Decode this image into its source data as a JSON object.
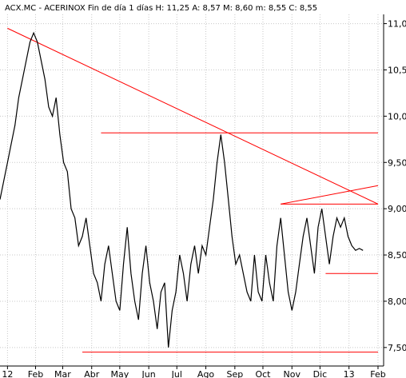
{
  "chart_data": {
    "type": "line",
    "title": "ACX.MC - ACERINOX  Fin de día 1 días  H: 11,25  A: 8,57  M: 8,60  m: 8,55  C: 8,55",
    "ylim": [
      7.3,
      11.1
    ],
    "y_ticks": [
      "7,50",
      "8,00",
      "8,50",
      "9,00",
      "9,50",
      "10,0",
      "10,5",
      "11,0"
    ],
    "y_tick_values": [
      7.5,
      8.0,
      8.5,
      9.0,
      9.5,
      10.0,
      10.5,
      11.0
    ],
    "x_ticks": [
      "12",
      "Feb",
      "Mar",
      "Abr",
      "May",
      "Jun",
      "Jul",
      "Ago",
      "Sep",
      "Oct",
      "Nov",
      "Dic",
      "13",
      "Feb"
    ],
    "x_tick_values": [
      0,
      30,
      59,
      90,
      120,
      151,
      181,
      212,
      243,
      273,
      304,
      334,
      365,
      396
    ],
    "xlim": [
      -8,
      402
    ],
    "grid": true,
    "series": [
      {
        "x": [
          -8,
          -4,
          0,
          4,
          8,
          12,
          16,
          20,
          24,
          28,
          32,
          36,
          40,
          44,
          48,
          52,
          56,
          60,
          64,
          68,
          72,
          76,
          80,
          84,
          88,
          92,
          96,
          100,
          104,
          108,
          112,
          116,
          120,
          124,
          128,
          132,
          136,
          140,
          144,
          148,
          152,
          156,
          160,
          164,
          168,
          172,
          176,
          180,
          184,
          188,
          192,
          196,
          200,
          204,
          208,
          212,
          216,
          220,
          224,
          228,
          232,
          236,
          240,
          244,
          248,
          252,
          256,
          260,
          264,
          268,
          272,
          276,
          280,
          284,
          288,
          292,
          296,
          300,
          304,
          308,
          312,
          316,
          320,
          324,
          328,
          332,
          336,
          340,
          344,
          348,
          352,
          356,
          360,
          364,
          368,
          372,
          376,
          380
        ],
        "values": [
          9.1,
          9.3,
          9.5,
          9.7,
          9.9,
          10.2,
          10.4,
          10.6,
          10.8,
          10.9,
          10.8,
          10.6,
          10.4,
          10.1,
          10.0,
          10.2,
          9.8,
          9.5,
          9.4,
          9.0,
          8.9,
          8.6,
          8.7,
          8.9,
          8.6,
          8.3,
          8.2,
          8.0,
          8.4,
          8.6,
          8.3,
          8.0,
          7.9,
          8.4,
          8.8,
          8.3,
          8.0,
          7.8,
          8.3,
          8.6,
          8.2,
          8.0,
          7.7,
          8.1,
          8.2,
          7.5,
          7.9,
          8.1,
          8.5,
          8.3,
          8.0,
          8.4,
          8.6,
          8.3,
          8.6,
          8.5,
          8.8,
          9.1,
          9.5,
          9.8,
          9.5,
          9.1,
          8.7,
          8.4,
          8.5,
          8.3,
          8.1,
          8.0,
          8.5,
          8.1,
          8.0,
          8.5,
          8.2,
          8.0,
          8.6,
          8.9,
          8.5,
          8.1,
          7.9,
          8.1,
          8.4,
          8.7,
          8.9,
          8.6,
          8.3,
          8.8,
          9.0,
          8.7,
          8.4,
          8.7,
          8.9,
          8.8,
          8.9,
          8.7,
          8.6,
          8.55,
          8.57,
          8.55
        ]
      }
    ],
    "lines": [
      {
        "x1": 0,
        "y1": 10.95,
        "x2": 396,
        "y2": 9.05
      },
      {
        "x1": 100,
        "y1": 9.82,
        "x2": 396,
        "y2": 9.82
      },
      {
        "x1": 292,
        "y1": 9.05,
        "x2": 396,
        "y2": 9.05
      },
      {
        "x1": 292,
        "y1": 9.05,
        "x2": 396,
        "y2": 9.25
      },
      {
        "x1": 340,
        "y1": 8.3,
        "x2": 396,
        "y2": 8.3
      },
      {
        "x1": 80,
        "y1": 7.45,
        "x2": 396,
        "y2": 7.45
      }
    ]
  }
}
